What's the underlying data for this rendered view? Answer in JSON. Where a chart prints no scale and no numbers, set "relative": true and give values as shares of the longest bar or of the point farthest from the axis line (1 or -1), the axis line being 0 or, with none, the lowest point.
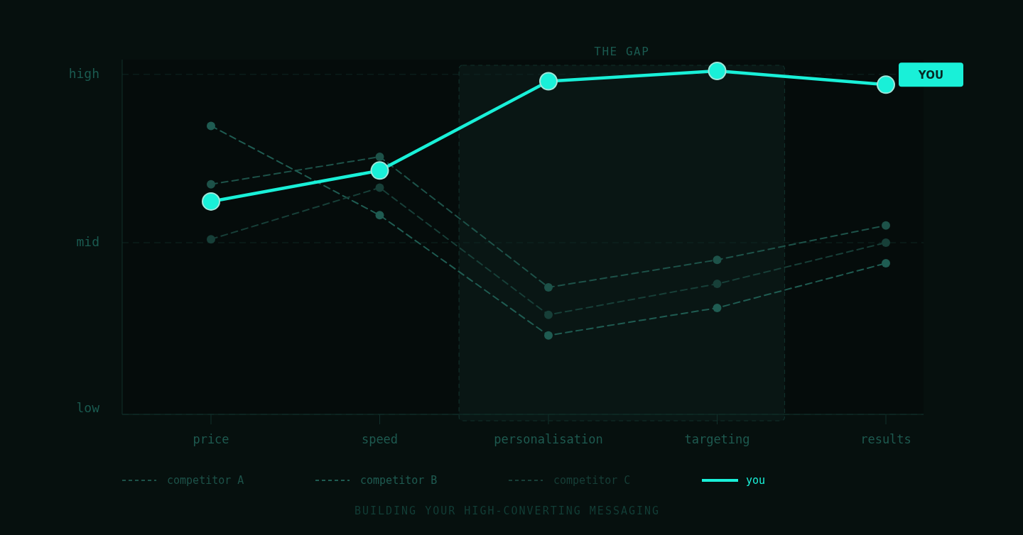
{
  "chart_data": {
    "type": "line",
    "title": "BUILDING YOUR HIGH-CONVERTING MESSAGING",
    "categories": [
      "price",
      "speed",
      "personalisation",
      "targeting",
      "results"
    ],
    "relative": true,
    "series": [
      {
        "name": "competitor A",
        "color": "#1d5249",
        "line_style": "dashed",
        "values": [
          0.67,
          0.75,
          0.37,
          0.45,
          0.55
        ]
      },
      {
        "name": "competitor B",
        "color": "#1f5c52",
        "line_style": "dashed",
        "values": [
          0.84,
          0.58,
          0.23,
          0.31,
          0.44
        ]
      },
      {
        "name": "competitor C",
        "color": "#173f38",
        "line_style": "dashed",
        "values": [
          0.51,
          0.66,
          0.29,
          0.38,
          0.5
        ]
      },
      {
        "name": "you",
        "color": "#19f0d8",
        "line_style": "solid",
        "values": [
          0.62,
          0.71,
          0.97,
          1,
          0.96
        ]
      }
    ],
    "ref_lines": [
      {
        "axis": "y",
        "value": 0.99,
        "label": "high",
        "line_style": "dashed"
      },
      {
        "axis": "y",
        "value": 0.5,
        "label": "mid",
        "line_style": "dashed"
      },
      {
        "axis": "y",
        "value": 0,
        "label": "low",
        "line_style": "dashed"
      }
    ],
    "legend": "bottom",
    "marker": "circle",
    "bands": [
      {
        "axis": "x",
        "from": "personalisation",
        "to": "targeting",
        "label": "THE GAP"
      }
    ],
    "annotations": [
      "YOU"
    ]
  }
}
